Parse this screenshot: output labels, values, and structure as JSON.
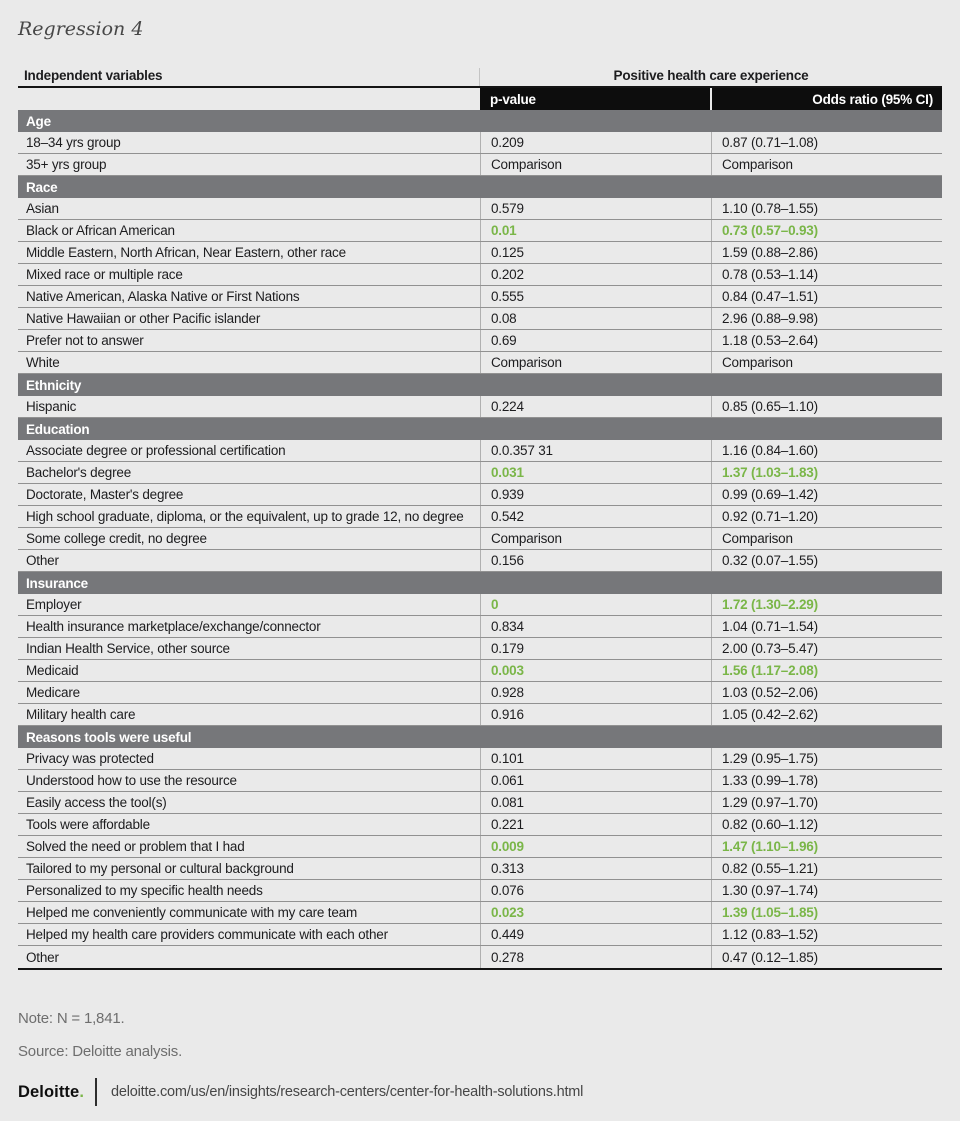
{
  "title": "Regression 4",
  "colors": {
    "significant_green": "#7ab648",
    "section_band_gray": "#76777a",
    "header_black": "#0d0d0d",
    "page_background": "#eaeaea"
  },
  "table": {
    "col1_header": "Independent variables",
    "group_header": "Positive health care experience",
    "p_header": "p-value",
    "or_header": "Odds ratio (95% CI)",
    "sections": [
      {
        "name": "Age",
        "rows": [
          {
            "label": "18–34 yrs group",
            "p": "0.209",
            "or": "0.87 (0.71–1.08)",
            "sig": false
          },
          {
            "label": "35+ yrs group",
            "p": "Comparison",
            "or": "Comparison",
            "sig": false
          }
        ]
      },
      {
        "name": "Race",
        "rows": [
          {
            "label": "Asian",
            "p": "0.579",
            "or": "1.10 (0.78–1.55)",
            "sig": false
          },
          {
            "label": "Black or African American",
            "p": "0.01",
            "or": "0.73 (0.57–0.93)",
            "sig": true
          },
          {
            "label": "Middle Eastern, North African, Near Eastern, other race",
            "p": "0.125",
            "or": "1.59 (0.88–2.86)",
            "sig": false
          },
          {
            "label": "Mixed race or multiple race",
            "p": "0.202",
            "or": "0.78 (0.53–1.14)",
            "sig": false
          },
          {
            "label": "Native American, Alaska Native or First Nations",
            "p": "0.555",
            "or": "0.84 (0.47–1.51)",
            "sig": false
          },
          {
            "label": "Native Hawaiian or other Pacific islander",
            "p": "0.08",
            "or": "2.96 (0.88–9.98)",
            "sig": false
          },
          {
            "label": "Prefer not to answer",
            "p": "0.69",
            "or": "1.18 (0.53–2.64)",
            "sig": false
          },
          {
            "label": "White",
            "p": "Comparison",
            "or": "Comparison",
            "sig": false
          }
        ]
      },
      {
        "name": "Ethnicity",
        "rows": [
          {
            "label": "Hispanic",
            "p": "0.224",
            "or": "0.85 (0.65–1.10)",
            "sig": false
          }
        ]
      },
      {
        "name": "Education",
        "rows": [
          {
            "label": "Associate degree or professional certification",
            "p": "0.0.357 31",
            "or": "1.16 (0.84–1.60)",
            "sig": false
          },
          {
            "label": "Bachelor's degree",
            "p": "0.031",
            "or": "1.37 (1.03–1.83)",
            "sig": true
          },
          {
            "label": "Doctorate, Master's degree",
            "p": "0.939",
            "or": "0.99 (0.69–1.42)",
            "sig": false
          },
          {
            "label": "High school graduate, diploma, or the equivalent, up to grade 12, no degree",
            "p": "0.542",
            "or": "0.92 (0.71–1.20)",
            "sig": false
          },
          {
            "label": "Some college credit, no degree",
            "p": "Comparison",
            "or": "Comparison",
            "sig": false
          },
          {
            "label": "Other",
            "p": "0.156",
            "or": "0.32 (0.07–1.55)",
            "sig": false
          }
        ]
      },
      {
        "name": "Insurance",
        "rows": [
          {
            "label": "Employer",
            "p": "0",
            "or": "1.72 (1.30–2.29)",
            "sig": true
          },
          {
            "label": "Health insurance marketplace/exchange/connector",
            "p": "0.834",
            "or": "1.04 (0.71–1.54)",
            "sig": false
          },
          {
            "label": "Indian Health Service, other source",
            "p": "0.179",
            "or": "2.00 (0.73–5.47)",
            "sig": false
          },
          {
            "label": "Medicaid",
            "p": "0.003",
            "or": "1.56 (1.17–2.08)",
            "sig": true
          },
          {
            "label": "Medicare",
            "p": "0.928",
            "or": "1.03 (0.52–2.06)",
            "sig": false
          },
          {
            "label": "Military health care",
            "p": "0.916",
            "or": "1.05 (0.42–2.62)",
            "sig": false
          }
        ]
      },
      {
        "name": "Reasons tools were useful",
        "rows": [
          {
            "label": "Privacy was protected",
            "p": "0.101",
            "or": "1.29 (0.95–1.75)",
            "sig": false
          },
          {
            "label": "Understood how to use the resource",
            "p": "0.061",
            "or": "1.33 (0.99–1.78)",
            "sig": false
          },
          {
            "label": "Easily access the tool(s)",
            "p": "0.081",
            "or": "1.29 (0.97–1.70)",
            "sig": false
          },
          {
            "label": "Tools were affordable",
            "p": "0.221",
            "or": "0.82 (0.60–1.12)",
            "sig": false
          },
          {
            "label": "Solved the need or problem that I had",
            "p": "0.009",
            "or": "1.47 (1.10–1.96)",
            "sig": true
          },
          {
            "label": "Tailored to my personal or cultural background",
            "p": "0.313",
            "or": "0.82 (0.55–1.21)",
            "sig": false
          },
          {
            "label": "Personalized to my specific health needs",
            "p": "0.076",
            "or": "1.30 (0.97–1.74)",
            "sig": false
          },
          {
            "label": "Helped me conveniently communicate with my care team",
            "p": "0.023",
            "or": "1.39 (1.05–1.85)",
            "sig": true
          },
          {
            "label": "Helped my health care providers communicate with each other",
            "p": "0.449",
            "or": "1.12 (0.83–1.52)",
            "sig": false
          },
          {
            "label": "Other",
            "p": "0.278",
            "or": "0.47 (0.12–1.85)",
            "sig": false
          }
        ]
      }
    ]
  },
  "note": "Note: N = 1,841.",
  "source": "Source: Deloitte analysis.",
  "footer": {
    "brand": "Deloitte",
    "brand_dot": ".",
    "url": "deloitte.com/us/en/insights/research-centers/center-for-health-solutions.html"
  }
}
